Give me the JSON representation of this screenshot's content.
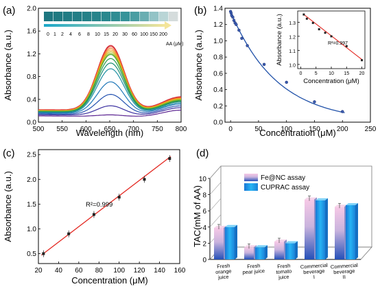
{
  "panels": {
    "a": "(a)",
    "b": "(b)",
    "c": "(c)",
    "d": "(d)"
  },
  "colors": {
    "fit_red": "#e3261f",
    "fit_blue": "#1f50a8",
    "bar_pink_top": "#f4c6e4",
    "bar_pink_mid": "#b9a8d8",
    "bar_blue_bottom": "#1e4fb4",
    "bar_cyan": "#1fb0f0",
    "axis": "#000000"
  },
  "chart_data": [
    {
      "id": "a",
      "type": "line",
      "xlabel": "Wavelength (nm)",
      "ylabel": "Absorbance (a.u.)",
      "xlim": [
        500,
        800
      ],
      "ylim": [
        0.0,
        2.0
      ],
      "xticks": [
        "500",
        "550",
        "600",
        "650",
        "700",
        "750",
        "800"
      ],
      "yticks": [
        "0.0",
        "0.4",
        "0.8",
        "1.2",
        "1.6",
        "2.0"
      ],
      "strip_label": "AA (μM)",
      "strip_values": [
        "0",
        "1",
        "2",
        "4",
        "6",
        "8",
        "10",
        "15",
        "20",
        "30",
        "60",
        "100",
        "150",
        "200"
      ],
      "peak_nm": 652,
      "series": [
        {
          "concentration": "0",
          "peak": 1.36,
          "baseline": 0.22,
          "color": "#cc1f2f"
        },
        {
          "concentration": "1",
          "peak": 1.34,
          "baseline": 0.215,
          "color": "#e8453a"
        },
        {
          "concentration": "2",
          "peak": 1.31,
          "baseline": 0.21,
          "color": "#f07a2e"
        },
        {
          "concentration": "4",
          "peak": 1.28,
          "baseline": 0.205,
          "color": "#f3a21f"
        },
        {
          "concentration": "6",
          "peak": 1.25,
          "baseline": 0.2,
          "color": "#c9b91e"
        },
        {
          "concentration": "8",
          "peak": 1.22,
          "baseline": 0.195,
          "color": "#8fb82a"
        },
        {
          "concentration": "10",
          "peak": 1.2,
          "baseline": 0.19,
          "color": "#52a83a"
        },
        {
          "concentration": "15",
          "peak": 1.13,
          "baseline": 0.185,
          "color": "#2b9a4c"
        },
        {
          "concentration": "20",
          "peak": 1.05,
          "baseline": 0.18,
          "color": "#1d8f76"
        },
        {
          "concentration": "30",
          "peak": 0.95,
          "baseline": 0.17,
          "color": "#1e8fa3"
        },
        {
          "concentration": "60",
          "peak": 0.72,
          "baseline": 0.16,
          "color": "#1f77b8"
        },
        {
          "concentration": "100",
          "peak": 0.5,
          "baseline": 0.145,
          "color": "#2452b0"
        },
        {
          "concentration": "150",
          "peak": 0.3,
          "baseline": 0.13,
          "color": "#3a2fa0"
        },
        {
          "concentration": "200",
          "peak": 0.14,
          "baseline": 0.11,
          "color": "#5a2290"
        }
      ]
    },
    {
      "id": "b",
      "type": "scatter",
      "xlabel": "Concentration (μM)",
      "ylabel": "Absorbance (a.u.)",
      "xlim": [
        -10,
        250
      ],
      "ylim": [
        0.0,
        1.4
      ],
      "xticks": [
        "0",
        "50",
        "100",
        "150",
        "200",
        "250"
      ],
      "yticks": [
        "0.0",
        "0.2",
        "0.4",
        "0.6",
        "0.8",
        "1.0",
        "1.2",
        "1.4"
      ],
      "points": [
        {
          "x": 0,
          "y": 1.36
        },
        {
          "x": 1,
          "y": 1.34
        },
        {
          "x": 2,
          "y": 1.31
        },
        {
          "x": 4,
          "y": 1.29
        },
        {
          "x": 6,
          "y": 1.25
        },
        {
          "x": 8,
          "y": 1.22
        },
        {
          "x": 10,
          "y": 1.2
        },
        {
          "x": 15,
          "y": 1.13
        },
        {
          "x": 20,
          "y": 1.03
        },
        {
          "x": 30,
          "y": 0.94
        },
        {
          "x": 60,
          "y": 0.71
        },
        {
          "x": 100,
          "y": 0.49
        },
        {
          "x": 150,
          "y": 0.25
        },
        {
          "x": 200,
          "y": 0.13
        }
      ],
      "inset": {
        "type": "scatter",
        "xlabel": "Concentration (μM)",
        "ylabel": "Absorbance (a.u.)",
        "xlim": [
          -1,
          21
        ],
        "ylim": [
          0.97,
          1.38
        ],
        "xticks": [
          "0",
          "5",
          "10",
          "15",
          "20"
        ],
        "yticks": [
          "1.0",
          "1.1",
          "1.2",
          "1.3"
        ],
        "annotation": "R²=0.997",
        "points": [
          {
            "x": 1,
            "y": 1.355
          },
          {
            "x": 2,
            "y": 1.325
          },
          {
            "x": 4,
            "y": 1.295
          },
          {
            "x": 6,
            "y": 1.25
          },
          {
            "x": 8,
            "y": 1.225
          },
          {
            "x": 10,
            "y": 1.2
          },
          {
            "x": 15,
            "y": 1.13
          },
          {
            "x": 20,
            "y": 1.03
          }
        ],
        "fit": [
          [
            1,
            1.355
          ],
          [
            20,
            1.035
          ]
        ]
      }
    },
    {
      "id": "c",
      "type": "scatter",
      "xlabel": "Concentration (μM)",
      "ylabel": "Absorbance (a.u.)",
      "xlim": [
        20,
        160
      ],
      "ylim": [
        0.3,
        2.6
      ],
      "xticks": [
        "20",
        "40",
        "60",
        "80",
        "100",
        "120",
        "140",
        "160"
      ],
      "yticks": [
        "0.5",
        "1.0",
        "1.5",
        "2.0",
        "2.5"
      ],
      "annotation": "R²=0.999",
      "points": [
        {
          "x": 25,
          "y": 0.5
        },
        {
          "x": 50,
          "y": 0.9
        },
        {
          "x": 75,
          "y": 1.29
        },
        {
          "x": 100,
          "y": 1.64
        },
        {
          "x": 125,
          "y": 2.0
        },
        {
          "x": 150,
          "y": 2.42
        }
      ],
      "fit": [
        [
          23,
          0.47
        ],
        [
          151,
          2.46
        ]
      ]
    },
    {
      "id": "d",
      "type": "bar",
      "ylabel": "TAC(mM of AA)",
      "ylim": [
        0,
        10
      ],
      "yticks": [
        "0",
        "2",
        "4",
        "6",
        "8",
        "10"
      ],
      "categories": [
        "Fresh orange juice",
        "Fresh pear juice",
        "Fresh tomato juice",
        "Commercial beverage I",
        "Commercial beverage II"
      ],
      "category_lines": [
        [
          "Fresh",
          "orange",
          "juice"
        ],
        [
          "Fresh",
          "pear juice"
        ],
        [
          "Fresh",
          "tomato",
          "juice"
        ],
        [
          "Commercial",
          "beverage",
          "I"
        ],
        [
          "Commercial",
          "beverage",
          "II"
        ]
      ],
      "series": [
        {
          "name": "Fe@NC assay",
          "values": [
            3.9,
            1.5,
            2.2,
            7.4,
            6.5
          ]
        },
        {
          "name": "CUPRAC assay",
          "values": [
            4.0,
            1.5,
            2.0,
            7.3,
            6.7
          ]
        }
      ]
    }
  ]
}
